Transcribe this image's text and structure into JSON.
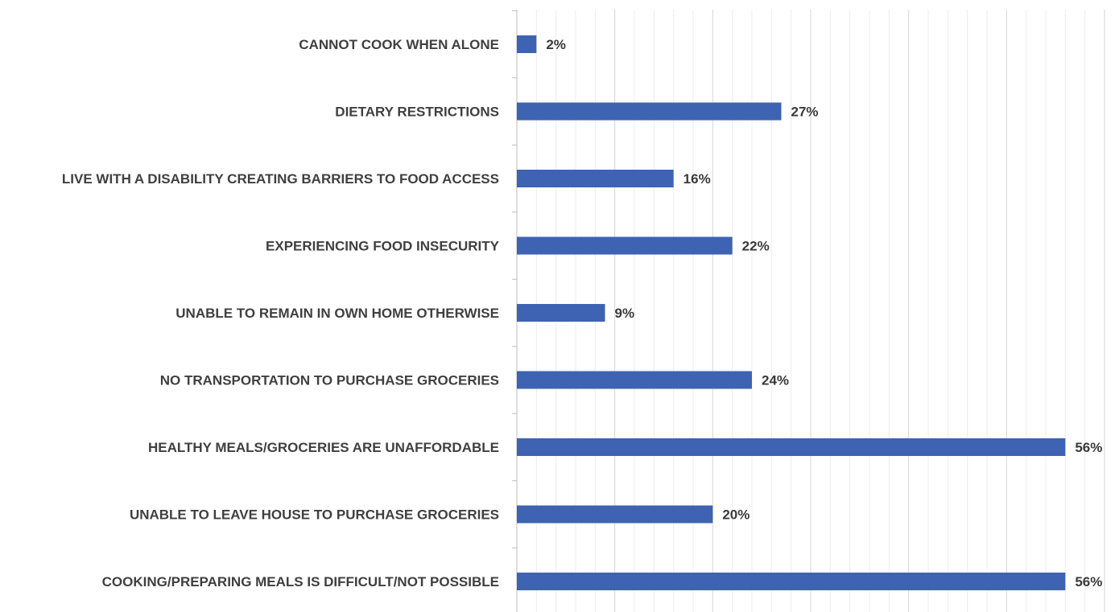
{
  "chart_data": {
    "type": "bar",
    "orientation": "horizontal",
    "categories": [
      "CANNOT COOK WHEN ALONE",
      "DIETARY RESTRICTIONS",
      "LIVE WITH A DISABILITY CREATING BARRIERS TO FOOD ACCESS",
      "EXPERIENCING FOOD INSECURITY",
      "UNABLE TO REMAIN IN OWN HOME OTHERWISE",
      "NO TRANSPORTATION TO PURCHASE GROCERIES",
      "HEALTHY MEALS/GROCERIES ARE UNAFFORDABLE",
      "UNABLE TO LEAVE HOUSE TO PURCHASE GROCERIES",
      "COOKING/PREPARING MEALS IS DIFFICULT/NOT POSSIBLE"
    ],
    "values": [
      2,
      27,
      16,
      22,
      9,
      24,
      56,
      20,
      56
    ],
    "data_labels": [
      "2%",
      "27%",
      "16%",
      "22%",
      "9%",
      "24%",
      "56%",
      "20%",
      "56%"
    ],
    "xlim": [
      0,
      60
    ],
    "bar_color": "#3e63b2",
    "grid": true
  }
}
